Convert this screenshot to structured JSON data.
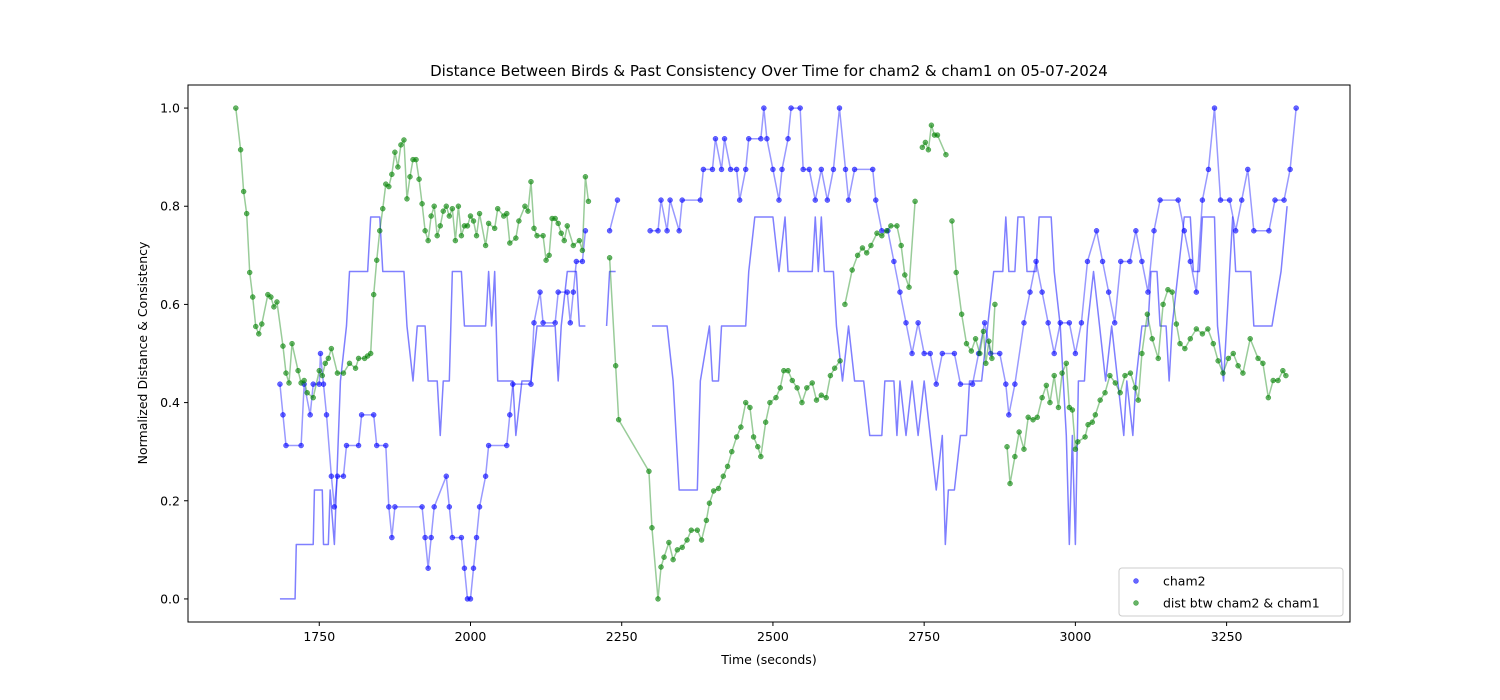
{
  "chart_data": {
    "type": "scatter",
    "title": "Distance Between Birds & Past Consistency Over Time for cham2 & cham1 on 05-07-2024",
    "xlabel": "Time (seconds)",
    "ylabel": "Normalized Distance & Consistency",
    "xlim": [
      1533,
      3454
    ],
    "ylim": [
      -0.047,
      1.047
    ],
    "xticks": [
      1750,
      2000,
      2250,
      2500,
      2750,
      3000,
      3250
    ],
    "yticks": [
      {
        "value": 0,
        "label": "0.0"
      },
      {
        "value": 0.2,
        "label": "0.2"
      },
      {
        "value": 0.4,
        "label": "0.4"
      },
      {
        "value": 0.6,
        "label": "0.6"
      },
      {
        "value": 0.8,
        "label": "0.8"
      },
      {
        "value": 1,
        "label": "1.0"
      }
    ],
    "legend": "lower right",
    "series": [
      {
        "name": "cham2",
        "color": "#0000ff",
        "markers": true,
        "x": [
          1685,
          1690,
          1695,
          1720,
          1725,
          1735,
          1740,
          1750,
          1752,
          1757,
          1762,
          1770,
          1775,
          1780,
          1790,
          1795,
          1815,
          1820,
          1840,
          1845,
          1860,
          1865,
          1870,
          1875,
          1920,
          1925,
          1930,
          1935,
          1940,
          1960,
          1965,
          1970,
          1985,
          1990,
          1995,
          2000,
          2005,
          2010,
          2015,
          2025,
          2030,
          2060,
          2065,
          2070,
          2100,
          2105,
          2115,
          2120,
          2140,
          2145,
          2160,
          2165,
          2170,
          2175,
          2185,
          2190,
          null,
          2230,
          2243,
          null,
          2297,
          2310,
          2315,
          2325,
          2330,
          2345,
          2350,
          2380,
          2385,
          2400,
          2405,
          2415,
          2420,
          2430,
          2440,
          2445,
          2455,
          2460,
          2480,
          2485,
          2490,
          2500,
          2510,
          2515,
          2525,
          2530,
          2545,
          2550,
          2560,
          2570,
          2580,
          2590,
          2600,
          2610,
          2620,
          2625,
          2635,
          2665,
          2670,
          2680,
          2690,
          2700,
          2710,
          2720,
          2730,
          2740,
          2750,
          2760,
          2770,
          2780,
          2800,
          2810,
          2830,
          2840,
          2850,
          2860,
          2875,
          2885,
          2890,
          2900,
          2915,
          2925,
          2935,
          2945,
          2955,
          2965,
          2975,
          2990,
          3000,
          3010,
          3020,
          3035,
          3045,
          3055,
          3065,
          3075,
          3090,
          3100,
          3110,
          3120,
          3130,
          3140,
          3170,
          3180,
          3190,
          3200,
          3210,
          3220,
          3230,
          3240,
          3255,
          3265,
          3275,
          3285,
          3295,
          3320,
          3330,
          3345,
          3355,
          3365
        ],
        "values": [
          0.4375,
          0.375,
          0.3125,
          0.3125,
          0.4375,
          0.375,
          0.4375,
          0.4375,
          0.5,
          0.4375,
          0.375,
          0.25,
          0.1875,
          0.25,
          0.25,
          0.3125,
          0.3125,
          0.375,
          0.375,
          0.3125,
          0.3125,
          0.1875,
          0.125,
          0.1875,
          0.1875,
          0.125,
          0.0625,
          0.125,
          0.1875,
          0.25,
          0.1875,
          0.125,
          0.125,
          0.0625,
          0,
          0,
          0.0625,
          0.125,
          0.1875,
          0.25,
          0.3125,
          0.3125,
          0.375,
          0.4375,
          0.4375,
          0.5625,
          0.625,
          0.5625,
          0.5625,
          0.625,
          0.625,
          0.5625,
          0.625,
          0.6875,
          0.6875,
          0.75,
          null,
          0.75,
          0.8125,
          null,
          0.75,
          0.75,
          0.8125,
          0.75,
          0.8125,
          0.75,
          0.8125,
          0.8125,
          0.875,
          0.875,
          0.9375,
          0.875,
          0.9375,
          0.875,
          0.875,
          0.8125,
          0.875,
          0.9375,
          0.9375,
          1,
          0.9375,
          0.875,
          0.8125,
          0.875,
          0.9375,
          1,
          1,
          0.875,
          0.875,
          0.8125,
          0.875,
          0.8125,
          0.875,
          1,
          0.875,
          0.8125,
          0.875,
          0.875,
          0.8125,
          0.75,
          0.75,
          0.6875,
          0.625,
          0.5625,
          0.5,
          0.5625,
          0.5,
          0.5,
          0.4375,
          0.5,
          0.5,
          0.4375,
          0.4375,
          0.5,
          0.5625,
          0.5,
          0.5,
          0.4375,
          0.375,
          0.4375,
          0.5625,
          0.625,
          0.6875,
          0.625,
          0.5625,
          0.5,
          0.5625,
          0.5625,
          0.5,
          0.5625,
          0.6875,
          0.75,
          0.6875,
          0.625,
          0.5625,
          0.6875,
          0.6875,
          0.75,
          0.6875,
          0.625,
          0.75,
          0.8125,
          0.8125,
          0.75,
          0.6875,
          0.625,
          0.8125,
          0.875,
          1,
          0.8125,
          0.8125,
          0.75,
          0.8125,
          0.875,
          0.75,
          0.75,
          0.8125,
          0.8125,
          0.875,
          1
        ]
      },
      {
        "color": "#0000ff",
        "markers": false,
        "x": [
          1685,
          1710,
          1712,
          1740,
          1742,
          1755,
          1757,
          1765,
          1768,
          1775,
          1785,
          1795,
          1800,
          1830,
          1835,
          1850,
          1855,
          1890,
          1895,
          1905,
          1912,
          1925,
          1930,
          1945,
          1950,
          1955,
          1965,
          1970,
          1985,
          1990,
          2025,
          2030,
          2035,
          2040,
          2045,
          2070,
          2075,
          2085,
          2100,
          2110,
          2140,
          2145,
          2150,
          2160,
          2175,
          2180,
          2190,
          null,
          2225,
          2230,
          2240,
          null,
          2300,
          2325,
          2335,
          2340,
          2345,
          2375,
          2380,
          2395,
          2400,
          2410,
          2415,
          2455,
          2460,
          2470,
          2500,
          2510,
          2520,
          2525,
          2565,
          2570,
          2575,
          2580,
          2585,
          2600,
          2605,
          2615,
          2625,
          2635,
          2650,
          2660,
          2680,
          2685,
          2700,
          2705,
          2710,
          2720,
          2730,
          2740,
          2750,
          2760,
          2770,
          2780,
          2785,
          2790,
          2800,
          2810,
          2820,
          2825,
          2845,
          2855,
          2865,
          2880,
          2885,
          2890,
          2900,
          2905,
          2915,
          2920,
          2935,
          2940,
          2960,
          2965,
          2975,
          2985,
          2990,
          2995,
          3000,
          3005,
          3015,
          3020,
          3030,
          3040,
          3050,
          3060,
          3070,
          3080,
          3085,
          3095,
          3100,
          3110,
          3120,
          3125,
          3135,
          3140,
          3150,
          3155,
          3160,
          3170,
          3180,
          3190,
          3195,
          3205,
          3210,
          3230,
          3235,
          3245,
          3255,
          3260,
          3265,
          3290,
          3295,
          3325,
          3340,
          3350
        ],
        "values": [
          0,
          0,
          0.111,
          0.111,
          0.222,
          0.222,
          0.111,
          0.111,
          0.222,
          0.111,
          0.444,
          0.556,
          0.667,
          0.667,
          0.778,
          0.778,
          0.667,
          0.667,
          0.556,
          0.444,
          0.556,
          0.556,
          0.444,
          0.444,
          0.333,
          0.444,
          0.444,
          0.667,
          0.667,
          0.556,
          0.556,
          0.667,
          0.556,
          0.667,
          0.444,
          0.444,
          0.333,
          0.444,
          0.444,
          0.556,
          0.556,
          0.444,
          0.556,
          0.667,
          0.667,
          0.556,
          0.556,
          null,
          0.556,
          0.667,
          0.667,
          null,
          0.556,
          0.556,
          0.444,
          0.333,
          0.222,
          0.222,
          0.444,
          0.556,
          0.444,
          0.444,
          0.556,
          0.556,
          0.667,
          0.778,
          0.778,
          0.667,
          0.778,
          0.667,
          0.667,
          0.778,
          0.667,
          0.778,
          0.667,
          0.667,
          0.556,
          0.444,
          0.556,
          0.444,
          0.444,
          0.333,
          0.333,
          0.444,
          0.444,
          0.333,
          0.444,
          0.333,
          0.444,
          0.333,
          0.444,
          0.333,
          0.222,
          0.333,
          0.111,
          0.222,
          0.222,
          0.333,
          0.333,
          0.444,
          0.444,
          0.556,
          0.667,
          0.667,
          0.778,
          0.667,
          0.667,
          0.778,
          0.778,
          0.667,
          0.667,
          0.778,
          0.778,
          0.667,
          0.556,
          0.333,
          0.111,
          0.333,
          0.111,
          0.444,
          0.444,
          0.556,
          0.667,
          0.556,
          0.444,
          0.556,
          0.444,
          0.333,
          0.444,
          0.333,
          0.444,
          0.556,
          0.556,
          0.667,
          0.667,
          0.556,
          0.556,
          0.444,
          0.556,
          0.667,
          0.778,
          0.778,
          0.667,
          0.667,
          0.778,
          0.778,
          0.556,
          0.444,
          0.667,
          0.778,
          0.667,
          0.667,
          0.556,
          0.556,
          0.667,
          0.8
        ]
      },
      {
        "name": "dist btw cham2 & cham1",
        "color": "#008000",
        "markers": true,
        "x": [
          1612,
          1620,
          1625,
          1630,
          1635,
          1640,
          1645,
          1650,
          1655,
          1665,
          1670,
          1675,
          1680,
          1690,
          1695,
          1700,
          1705,
          1715,
          1720,
          1725,
          1730,
          1740,
          1750,
          1755,
          1760,
          1765,
          1770,
          1780,
          1790,
          1800,
          1810,
          1815,
          1825,
          1830,
          1835,
          1840,
          1845,
          1850,
          1855,
          1860,
          1865,
          1870,
          1875,
          1880,
          1885,
          1890,
          1895,
          1900,
          1905,
          1910,
          1915,
          1920,
          1925,
          1930,
          1935,
          1940,
          1945,
          1950,
          1955,
          1960,
          1965,
          1970,
          1975,
          1980,
          1985,
          1990,
          1995,
          2000,
          2005,
          2010,
          2015,
          2025,
          2030,
          2040,
          2045,
          2055,
          2060,
          2065,
          2075,
          2080,
          2090,
          2095,
          2100,
          2105,
          2110,
          2120,
          2125,
          2130,
          2135,
          2140,
          2145,
          2150,
          2155,
          2160,
          2170,
          2180,
          2185,
          2190,
          2195,
          null,
          2230,
          2240,
          2245,
          2295,
          2300,
          2310,
          2315,
          2320,
          2328,
          2335,
          2342,
          2350,
          2358,
          2365,
          2375,
          2382,
          2390,
          2395,
          2402,
          2410,
          2418,
          2425,
          2432,
          2440,
          2447,
          2455,
          2462,
          2468,
          2475,
          2480,
          2488,
          2495,
          2505,
          2512,
          2518,
          2525,
          2532,
          2540,
          2548,
          2556,
          2565,
          2572,
          2580,
          2588,
          2595,
          2602,
          2611,
          null,
          2619,
          2631,
          2640,
          2648,
          2655,
          2662,
          2672,
          2680,
          2688,
          2695,
          2705,
          2712,
          2718,
          2725,
          2735,
          null,
          2747,
          2752,
          2757,
          2762,
          2767,
          2772,
          2786,
          null,
          2796,
          2803,
          2812,
          2820,
          2828,
          2835,
          2842,
          2848,
          2852,
          2857,
          2862,
          2867,
          null,
          2887,
          2892,
          2900,
          2907,
          2915,
          2922,
          2930,
          2937,
          2945,
          2952,
          2958,
          2965,
          2972,
          2978,
          2985,
          2990,
          2995,
          3000,
          3004,
          3016,
          3021,
          3028,
          3033,
          3041,
          3049,
          3057,
          3066,
          3074,
          3082,
          3091,
          3099,
          3104,
          3110,
          3119,
          3127,
          3137,
          3145,
          3153,
          3160,
          3167,
          3173,
          3181,
          3190,
          3200,
          3210,
          3219,
          3228,
          3236,
          3244,
          3253,
          3261,
          3269,
          3277,
          3289,
          3302,
          3310,
          3319,
          3327,
          3335,
          3343,
          3348
        ],
        "values": [
          1.0,
          0.915,
          0.83,
          0.785,
          0.665,
          0.615,
          0.555,
          0.54,
          0.56,
          0.62,
          0.615,
          0.595,
          0.605,
          0.515,
          0.46,
          0.44,
          0.52,
          0.465,
          0.44,
          0.445,
          0.42,
          0.41,
          0.465,
          0.455,
          0.48,
          0.49,
          0.51,
          0.46,
          0.46,
          0.48,
          0.47,
          0.49,
          0.49,
          0.495,
          0.5,
          0.62,
          0.69,
          0.75,
          0.795,
          0.845,
          0.84,
          0.865,
          0.91,
          0.88,
          0.925,
          0.935,
          0.815,
          0.86,
          0.895,
          0.895,
          0.855,
          0.805,
          0.75,
          0.73,
          0.78,
          0.8,
          0.74,
          0.76,
          0.79,
          0.8,
          0.78,
          0.795,
          0.73,
          0.8,
          0.74,
          0.76,
          0.76,
          0.78,
          0.77,
          0.74,
          0.785,
          0.72,
          0.765,
          0.755,
          0.795,
          0.78,
          0.785,
          0.725,
          0.735,
          0.77,
          0.8,
          0.79,
          0.85,
          0.755,
          0.74,
          0.74,
          0.69,
          0.7,
          0.775,
          0.775,
          0.765,
          0.745,
          0.73,
          0.76,
          0.72,
          0.73,
          0.71,
          0.86,
          0.81,
          null,
          0.695,
          0.475,
          0.365,
          0.26,
          0.145,
          0,
          0.065,
          0.085,
          0.115,
          0.08,
          0.1,
          0.105,
          0.12,
          0.14,
          0.14,
          0.12,
          0.16,
          0.195,
          0.22,
          0.225,
          0.25,
          0.27,
          0.3,
          0.33,
          0.35,
          0.4,
          0.39,
          0.33,
          0.31,
          0.29,
          0.36,
          0.4,
          0.41,
          0.43,
          0.465,
          0.465,
          0.445,
          0.43,
          0.4,
          0.43,
          0.44,
          0.405,
          0.415,
          0.41,
          0.455,
          0.47,
          0.485,
          null,
          0.6,
          0.67,
          0.7,
          0.715,
          0.705,
          0.72,
          0.745,
          0.74,
          0.75,
          0.76,
          0.76,
          0.72,
          0.66,
          0.635,
          0.81,
          null,
          0.92,
          0.93,
          0.915,
          0.965,
          0.945,
          0.945,
          0.905,
          null,
          0.77,
          0.665,
          0.58,
          0.52,
          0.505,
          0.53,
          0.5,
          0.545,
          0.48,
          0.525,
          0.49,
          0.6,
          null,
          0.31,
          0.235,
          0.29,
          0.34,
          0.305,
          0.37,
          0.365,
          0.37,
          0.41,
          0.435,
          0.4,
          0.455,
          0.39,
          0.46,
          0.48,
          0.39,
          0.385,
          0.305,
          0.32,
          0.33,
          0.355,
          0.36,
          0.375,
          0.405,
          0.42,
          0.455,
          0.44,
          0.42,
          0.455,
          0.46,
          0.43,
          0.405,
          0.5,
          0.58,
          0.53,
          0.49,
          0.6,
          0.63,
          0.625,
          0.56,
          0.52,
          0.51,
          0.53,
          0.55,
          0.54,
          0.55,
          0.52,
          0.485,
          0.46,
          0.49,
          0.5,
          0.475,
          0.46,
          0.53,
          0.49,
          0.48,
          0.41,
          0.445,
          0.445,
          0.465,
          0.455
        ]
      }
    ]
  }
}
